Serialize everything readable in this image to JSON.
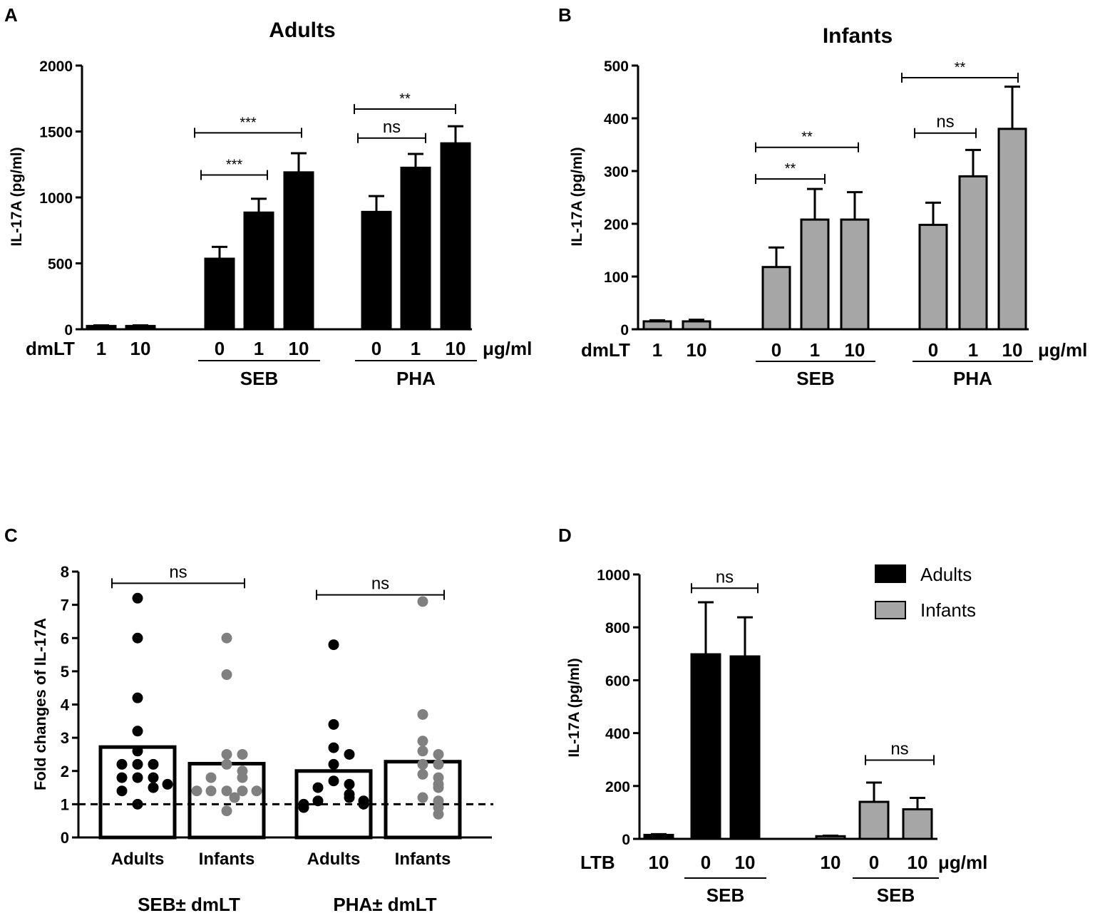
{
  "colors": {
    "adults": "#000000",
    "infants": "#a6a6a6",
    "infant_dot": "#808080"
  },
  "chart_data": [
    {
      "panel": "A",
      "type": "bar",
      "title": "Adults",
      "ylabel": "IL-17A (pg/ml)",
      "ylim": [
        0,
        2000
      ],
      "yticks": [
        "0",
        "500",
        "1000",
        "1500",
        "2000"
      ],
      "ytick_values": [
        0,
        500,
        1000,
        1500,
        2000
      ],
      "dose_label": "dmLT",
      "unit": "μg/ml",
      "bars": [
        {
          "label": "1",
          "value": 25,
          "error": 5
        },
        {
          "label": "10",
          "value": 25,
          "error": 5
        },
        {
          "label": "0",
          "value": 535,
          "error": 90
        },
        {
          "label": "1",
          "value": 885,
          "error": 105
        },
        {
          "label": "10",
          "value": 1190,
          "error": 145
        },
        {
          "label": "0",
          "value": 890,
          "error": 120
        },
        {
          "label": "1",
          "value": 1225,
          "error": 105
        },
        {
          "label": "10",
          "value": 1410,
          "error": 130
        }
      ],
      "groups": [
        {
          "label": "SEB",
          "bars": [
            2,
            4
          ]
        },
        {
          "label": "PHA",
          "bars": [
            5,
            7
          ]
        }
      ],
      "sig": [
        {
          "from": 2,
          "to": 3,
          "label": "***",
          "y": 1170
        },
        {
          "from": 2,
          "to": 4,
          "label": "***",
          "y": 1490
        },
        {
          "from": 5,
          "to": 6,
          "label": "ns",
          "y": 1450
        },
        {
          "from": 5,
          "to": 7,
          "label": "**",
          "y": 1670
        }
      ]
    },
    {
      "panel": "B",
      "type": "bar",
      "title": "Infants",
      "ylabel": "IL-17A (pg/ml)",
      "ylim": [
        0,
        500
      ],
      "yticks": [
        "0",
        "100",
        "200",
        "300",
        "400",
        "500"
      ],
      "ytick_values": [
        0,
        100,
        200,
        300,
        400,
        500
      ],
      "dose_label": "dmLT",
      "unit": "μg/ml",
      "bars": [
        {
          "label": "1",
          "value": 15,
          "error": 2
        },
        {
          "label": "10",
          "value": 15,
          "error": 3
        },
        {
          "label": "0",
          "value": 118,
          "error": 37
        },
        {
          "label": "1",
          "value": 208,
          "error": 58
        },
        {
          "label": "10",
          "value": 208,
          "error": 52
        },
        {
          "label": "0",
          "value": 198,
          "error": 42
        },
        {
          "label": "1",
          "value": 290,
          "error": 50
        },
        {
          "label": "10",
          "value": 380,
          "error": 80
        }
      ],
      "groups": [
        {
          "label": "SEB",
          "bars": [
            2,
            4
          ]
        },
        {
          "label": "PHA",
          "bars": [
            5,
            7
          ]
        }
      ],
      "sig": [
        {
          "from": 2,
          "to": 3,
          "label": "**",
          "y": 285
        },
        {
          "from": 2,
          "to": 4,
          "label": "**",
          "y": 345
        },
        {
          "from": 5,
          "to": 6,
          "label": "ns",
          "y": 372
        },
        {
          "from": 5,
          "to": 7,
          "label": "**",
          "y": 477
        }
      ]
    },
    {
      "panel": "C",
      "type": "bar+scatter",
      "ylabel": "Fold changes of IL-17A",
      "ylim": [
        0,
        8
      ],
      "yticks": [
        "0",
        "1",
        "2",
        "3",
        "4",
        "5",
        "6",
        "7",
        "8"
      ],
      "ytick_values": [
        0,
        1,
        2,
        3,
        4,
        5,
        6,
        7,
        8
      ],
      "reference_line": 1,
      "bars": [
        {
          "label": "Adults",
          "mean": 2.72,
          "group": "adults",
          "points": [
            7.2,
            6.0,
            4.2,
            3.2,
            2.6,
            2.2,
            2.2,
            2.2,
            1.8,
            1.8,
            1.8,
            1.6,
            1.5,
            1.4,
            1.0
          ]
        },
        {
          "label": "Infants",
          "mean": 2.22,
          "group": "infants",
          "points": [
            6.0,
            4.9,
            2.5,
            2.5,
            2.2,
            2.0,
            1.8,
            1.8,
            1.4,
            1.4,
            1.4,
            1.4,
            1.4,
            1.2,
            0.8
          ]
        },
        {
          "label": "Adults",
          "mean": 2.0,
          "group": "adults",
          "points": [
            5.8,
            3.4,
            2.7,
            2.5,
            2.2,
            1.7,
            1.6,
            1.5,
            1.3,
            1.2,
            1.1,
            1.1,
            1.0,
            1.0,
            0.9
          ]
        },
        {
          "label": "Infants",
          "mean": 2.28,
          "group": "infants",
          "points": [
            7.1,
            3.7,
            2.9,
            2.6,
            2.5,
            2.2,
            2.2,
            1.9,
            1.8,
            1.6,
            1.5,
            1.2,
            1.1,
            0.9,
            0.7
          ]
        }
      ],
      "groups": [
        {
          "label": "SEB± dmLT",
          "bars": [
            0,
            1
          ]
        },
        {
          "label": "PHA± dmLT",
          "bars": [
            2,
            3
          ]
        }
      ],
      "sig": [
        {
          "from": 0,
          "to": 1,
          "label": "ns",
          "y": 7.65
        },
        {
          "from": 2,
          "to": 3,
          "label": "ns",
          "y": 7.3
        }
      ]
    },
    {
      "panel": "D",
      "type": "bar",
      "ylabel": "IL-17A (pg/ml)",
      "ylim": [
        0,
        1000
      ],
      "yticks": [
        "0",
        "200",
        "400",
        "600",
        "800",
        "1000"
      ],
      "ytick_values": [
        0,
        200,
        400,
        600,
        800,
        1000
      ],
      "dose_label": "LTB",
      "unit": "μg/ml",
      "legend": [
        {
          "name": "Adults",
          "group": "adults"
        },
        {
          "name": "Infants",
          "group": "infants"
        }
      ],
      "bars": [
        {
          "label": "10",
          "value": 15,
          "error": 3,
          "group": "adults"
        },
        {
          "label": "0",
          "value": 698,
          "error": 197,
          "group": "adults"
        },
        {
          "label": "10",
          "value": 690,
          "error": 148,
          "group": "adults"
        },
        {
          "label": "10",
          "value": 10,
          "error": 2,
          "group": "infants"
        },
        {
          "label": "0",
          "value": 140,
          "error": 73,
          "group": "infants"
        },
        {
          "label": "10",
          "value": 112,
          "error": 43,
          "group": "infants"
        }
      ],
      "groups": [
        {
          "label": "SEB",
          "bars": [
            1,
            2
          ]
        },
        {
          "label": "SEB",
          "bars": [
            4,
            5
          ]
        }
      ],
      "sig": [
        {
          "from": 1,
          "to": 2,
          "label": "ns",
          "y": 948
        },
        {
          "from": 4,
          "to": 5,
          "label": "ns",
          "y": 298
        }
      ]
    }
  ]
}
